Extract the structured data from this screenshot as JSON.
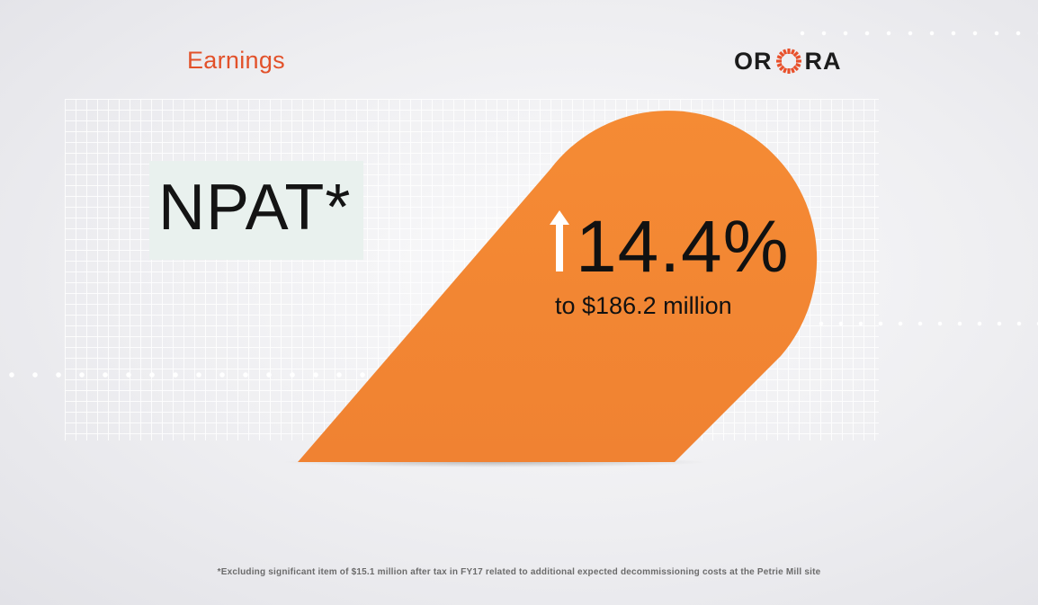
{
  "header": {
    "section_title": "Earnings",
    "logo_left": "OR",
    "logo_right": "RA",
    "logo_icon": "sun-ring-icon"
  },
  "metric": {
    "label": "NPAT*",
    "change": "14.4%",
    "direction_icon": "up-arrow-icon",
    "detail": "to $186.2 million"
  },
  "footnote": "*Excluding significant item of $15.1 million after tax in FY17 related to additional expected decommissioning costs at the Petrie Mill site",
  "colors": {
    "accent_orange": "#f48a35",
    "title_orange": "#e2512a",
    "logo_sun": "#e8502b",
    "label_bg": "#e9f1ee"
  }
}
